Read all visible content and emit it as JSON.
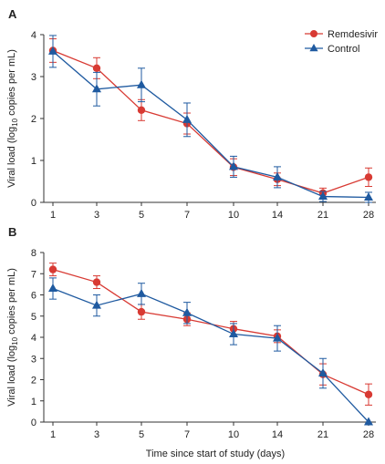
{
  "chart_data": [
    {
      "type": "line",
      "panel_label": "A",
      "ylabel_parts": [
        "Viral load (log",
        "10",
        " copies per mL)"
      ],
      "xlabel": "",
      "categories": [
        "1",
        "3",
        "5",
        "7",
        "10",
        "14",
        "21",
        "28"
      ],
      "ylim": [
        0,
        4
      ],
      "yticks": [
        "0",
        "1",
        "2",
        "3",
        "4"
      ],
      "grid": false,
      "legend_position": "top-right",
      "series": [
        {
          "name": "Remdesivir",
          "color": "#d83a33",
          "marker": "circle",
          "values": [
            3.62,
            3.2,
            2.2,
            1.88,
            0.84,
            0.55,
            0.22,
            0.6
          ],
          "err_low": [
            0.28,
            0.25,
            0.25,
            0.25,
            0.2,
            0.15,
            0.12,
            0.22
          ],
          "err_high": [
            0.28,
            0.25,
            0.25,
            0.25,
            0.2,
            0.15,
            0.12,
            0.22
          ]
        },
        {
          "name": "Control",
          "color": "#1f5aa0",
          "marker": "triangle",
          "values": [
            3.6,
            2.7,
            2.8,
            1.97,
            0.85,
            0.6,
            0.14,
            0.12
          ],
          "err_low": [
            0.38,
            0.4,
            0.4,
            0.4,
            0.25,
            0.25,
            0.12,
            0.12
          ],
          "err_high": [
            0.38,
            0.4,
            0.4,
            0.4,
            0.25,
            0.25,
            0.12,
            0.12
          ]
        }
      ]
    },
    {
      "type": "line",
      "panel_label": "B",
      "ylabel_parts": [
        "Viral load (log",
        "10",
        " copies per mL)"
      ],
      "xlabel": "Time since start of study (days)",
      "categories": [
        "1",
        "3",
        "5",
        "7",
        "10",
        "14",
        "21",
        "28"
      ],
      "ylim": [
        0,
        8
      ],
      "yticks": [
        "0",
        "1",
        "2",
        "3",
        "4",
        "5",
        "6",
        "7",
        "8"
      ],
      "grid": false,
      "series": [
        {
          "name": "Remdesivir",
          "color": "#d83a33",
          "marker": "circle",
          "values": [
            7.2,
            6.6,
            5.2,
            4.85,
            4.4,
            4.05,
            2.25,
            1.3
          ],
          "err_low": [
            0.3,
            0.3,
            0.35,
            0.3,
            0.35,
            0.3,
            0.5,
            0.5
          ],
          "err_high": [
            0.3,
            0.3,
            0.35,
            0.3,
            0.35,
            0.3,
            0.5,
            0.5
          ]
        },
        {
          "name": "Control",
          "color": "#1f5aa0",
          "marker": "triangle",
          "values": [
            6.3,
            5.5,
            6.05,
            5.15,
            4.15,
            3.95,
            2.3,
            0.0
          ],
          "err_low": [
            0.5,
            0.5,
            0.5,
            0.5,
            0.5,
            0.6,
            0.7,
            0.0
          ],
          "err_high": [
            0.5,
            0.5,
            0.5,
            0.5,
            0.5,
            0.6,
            0.7,
            0.0
          ]
        }
      ]
    }
  ]
}
